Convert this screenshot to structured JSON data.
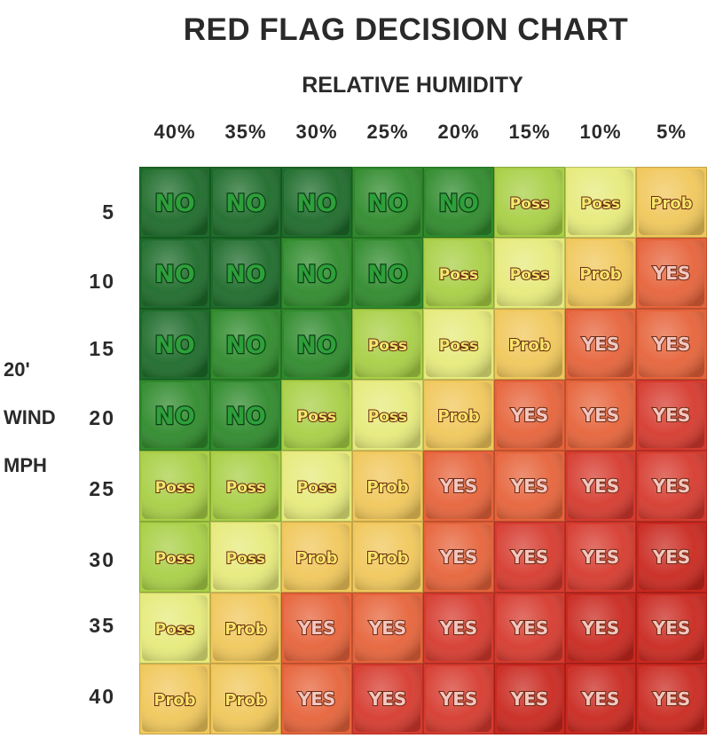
{
  "chart_data": {
    "type": "heatmap",
    "title": "RED FLAG DECISION CHART",
    "xlabel": "RELATIVE HUMIDITY",
    "ylabel_lines": [
      "20'",
      "WIND",
      "MPH"
    ],
    "x": [
      "40%",
      "35%",
      "30%",
      "25%",
      "20%",
      "15%",
      "10%",
      "5%"
    ],
    "y": [
      "5",
      "10",
      "15",
      "20",
      "25",
      "30",
      "35",
      "40"
    ],
    "values": [
      [
        "NO",
        "NO",
        "NO",
        "NO",
        "NO",
        "Poss",
        "Poss",
        "Prob"
      ],
      [
        "NO",
        "NO",
        "NO",
        "NO",
        "Poss",
        "Poss",
        "Prob",
        "YES"
      ],
      [
        "NO",
        "NO",
        "NO",
        "Poss",
        "Poss",
        "Prob",
        "YES",
        "YES"
      ],
      [
        "NO",
        "NO",
        "Poss",
        "Poss",
        "Prob",
        "YES",
        "YES",
        "YES"
      ],
      [
        "Poss",
        "Poss",
        "Poss",
        "Prob",
        "YES",
        "YES",
        "YES",
        "YES"
      ],
      [
        "Poss",
        "Poss",
        "Prob",
        "Prob",
        "YES",
        "YES",
        "YES",
        "YES"
      ],
      [
        "Poss",
        "Prob",
        "YES",
        "YES",
        "YES",
        "YES",
        "YES",
        "YES"
      ],
      [
        "Prob",
        "Prob",
        "YES",
        "YES",
        "YES",
        "YES",
        "YES",
        "YES"
      ]
    ],
    "colors": {
      "NO_dark": "#1d6b2a",
      "NO_mid": "#2f8a2c",
      "NO_light": "#4aa832",
      "Poss_green": "#a8cf45",
      "Poss_yellow": "#e6ea7a",
      "Prob_light": "#f0c75a",
      "Prob_orange": "#eb9a3e",
      "YES_orange": "#e6633a",
      "YES_red": "#d63a2e",
      "YES_deep": "#c9281f"
    },
    "text_colors": {
      "NO": "#2ea03a",
      "Poss": "#f2ea6e",
      "Prob": "#f7e66a",
      "YES": "#f4c6c0"
    }
  }
}
